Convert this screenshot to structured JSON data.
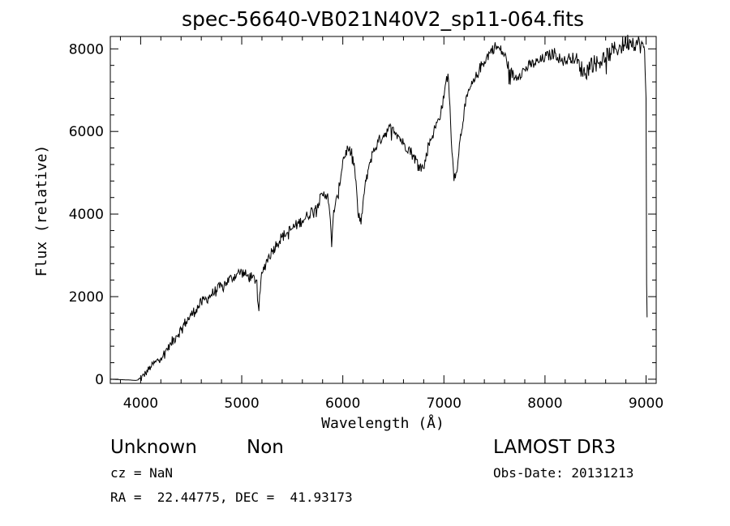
{
  "chart_data": {
    "type": "line",
    "title": "spec-56640-VB021N40V2_sp11-064.fits",
    "xlabel": "Wavelength (Å)",
    "ylabel": "Flux (relative)",
    "xlim": [
      3700,
      9100
    ],
    "ylim": [
      -100,
      8300
    ],
    "xticks": [
      4000,
      5000,
      6000,
      7000,
      8000,
      9000
    ],
    "yticks": [
      0,
      2000,
      4000,
      6000,
      8000
    ],
    "series": [
      {
        "name": "flux",
        "x": [
          3700,
          3800,
          3900,
          3950,
          4000,
          4050,
          4100,
          4150,
          4200,
          4250,
          4300,
          4350,
          4400,
          4450,
          4500,
          4550,
          4600,
          4650,
          4700,
          4750,
          4800,
          4850,
          4900,
          4950,
          5000,
          5050,
          5100,
          5150,
          5170,
          5190,
          5210,
          5250,
          5300,
          5350,
          5400,
          5450,
          5500,
          5550,
          5600,
          5650,
          5700,
          5750,
          5800,
          5850,
          5870,
          5890,
          5910,
          5950,
          6000,
          6050,
          6100,
          6130,
          6150,
          6180,
          6200,
          6230,
          6260,
          6300,
          6350,
          6400,
          6450,
          6500,
          6550,
          6600,
          6650,
          6700,
          6750,
          6800,
          6850,
          6900,
          6950,
          7000,
          7020,
          7040,
          7060,
          7080,
          7100,
          7120,
          7140,
          7160,
          7200,
          7250,
          7300,
          7350,
          7400,
          7450,
          7500,
          7550,
          7600,
          7650,
          7700,
          7750,
          7800,
          7850,
          7900,
          7950,
          8000,
          8050,
          8100,
          8150,
          8200,
          8250,
          8300,
          8350,
          8400,
          8450,
          8500,
          8550,
          8600,
          8650,
          8700,
          8750,
          8800,
          8850,
          8900,
          8950,
          8980,
          8990,
          9000,
          9005,
          9010
        ],
        "y": [
          0,
          -10,
          -20,
          -30,
          0,
          150,
          300,
          420,
          520,
          700,
          850,
          1050,
          1200,
          1400,
          1550,
          1700,
          1850,
          1950,
          2050,
          2150,
          2250,
          2350,
          2450,
          2550,
          2600,
          2500,
          2450,
          2400,
          1650,
          2400,
          2600,
          2900,
          3100,
          3300,
          3450,
          3550,
          3650,
          3750,
          3850,
          3950,
          4100,
          4250,
          4450,
          4500,
          4050,
          3200,
          4100,
          4400,
          5300,
          5600,
          5400,
          4800,
          4000,
          3750,
          4300,
          4800,
          5200,
          5500,
          5750,
          5900,
          6050,
          6100,
          5900,
          5700,
          5600,
          5400,
          5200,
          5100,
          5700,
          6000,
          6300,
          6800,
          7200,
          7400,
          6600,
          5500,
          4800,
          5000,
          5300,
          5800,
          6500,
          7000,
          7200,
          7500,
          7700,
          7900,
          8050,
          8000,
          7850,
          7500,
          7300,
          7400,
          7500,
          7600,
          7650,
          7700,
          7800,
          7850,
          7900,
          7750,
          7700,
          7800,
          7750,
          7550,
          7400,
          7650,
          7650,
          7700,
          7800,
          7900,
          8000,
          8050,
          8150,
          8200,
          8150,
          8100,
          8050,
          7500,
          6800,
          2300,
          1500
        ]
      }
    ]
  },
  "info": {
    "class": "Unknown",
    "subclass": "Non",
    "survey": "LAMOST DR3",
    "cz": "cz = NaN",
    "obs_date": "Obs-Date: 20131213",
    "coords": "RA =  22.44775, DEC =  41.93173"
  }
}
